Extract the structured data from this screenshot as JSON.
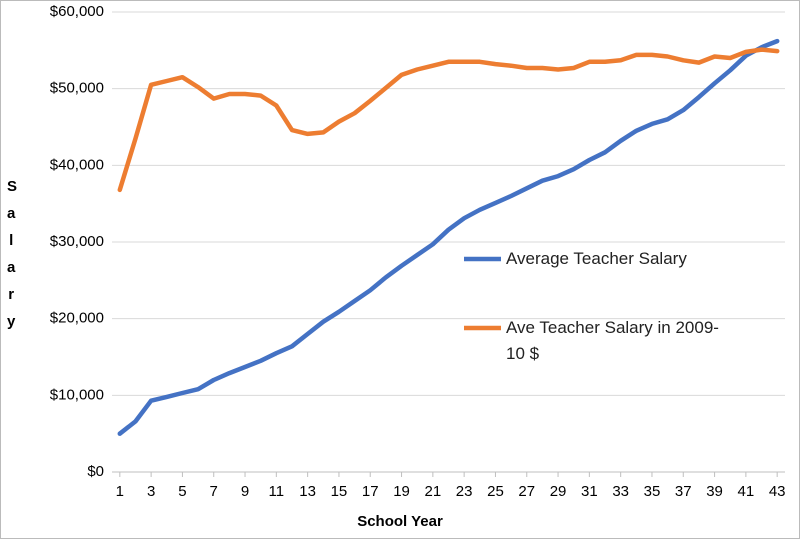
{
  "chart_data": {
    "type": "line",
    "x_label": "School Year",
    "y_label": "Salary",
    "x": [
      1,
      2,
      3,
      4,
      5,
      6,
      7,
      8,
      9,
      10,
      11,
      12,
      13,
      14,
      15,
      16,
      17,
      18,
      19,
      20,
      21,
      22,
      23,
      24,
      25,
      26,
      27,
      28,
      29,
      30,
      31,
      32,
      33,
      34,
      35,
      36,
      37,
      38,
      39,
      40,
      41,
      42,
      43
    ],
    "series": [
      {
        "name": "Average Teacher Salary",
        "color": "#4472c4",
        "values": [
          5000,
          6600,
          9300,
          9800,
          10300,
          10800,
          12000,
          12900,
          13700,
          14500,
          15500,
          16400,
          18000,
          19600,
          20900,
          22300,
          23700,
          25400,
          26900,
          28300,
          29700,
          31600,
          33100,
          34200,
          35100,
          36000,
          37000,
          38000,
          38600,
          39500,
          40700,
          41700,
          43200,
          44500,
          45400,
          46000,
          47200,
          48900,
          50700,
          52400,
          54300,
          55400,
          56200
        ]
      },
      {
        "name": "Ave Teacher Salary in 2009-10 $",
        "color": "#ed7d31",
        "values": [
          36800,
          43500,
          50500,
          51000,
          51500,
          50200,
          48700,
          49300,
          49300,
          49100,
          47800,
          44600,
          44100,
          44300,
          45700,
          46800,
          48400,
          50100,
          51800,
          52500,
          53000,
          53500,
          53500,
          53500,
          53200,
          53000,
          52700,
          52700,
          52500,
          52700,
          53500,
          53500,
          53700,
          54400,
          54400,
          54200,
          53700,
          53400,
          54200,
          54000,
          54800,
          55100,
          54900
        ]
      }
    ],
    "xlim": [
      0.5,
      43.5
    ],
    "xticks": [
      1,
      3,
      5,
      7,
      9,
      11,
      13,
      15,
      17,
      19,
      21,
      23,
      25,
      27,
      29,
      31,
      33,
      35,
      37,
      39,
      41,
      43
    ],
    "ylim": [
      0,
      60000
    ],
    "yticks": [
      {
        "value": 0,
        "label": "$0"
      },
      {
        "value": 10000,
        "label": "$10,000"
      },
      {
        "value": 20000,
        "label": "$20,000"
      },
      {
        "value": 30000,
        "label": "$30,000"
      },
      {
        "value": 40000,
        "label": "$40,000"
      },
      {
        "value": 50000,
        "label": "$50,000"
      },
      {
        "value": 60000,
        "label": "$60,000"
      }
    ],
    "grid": true
  }
}
